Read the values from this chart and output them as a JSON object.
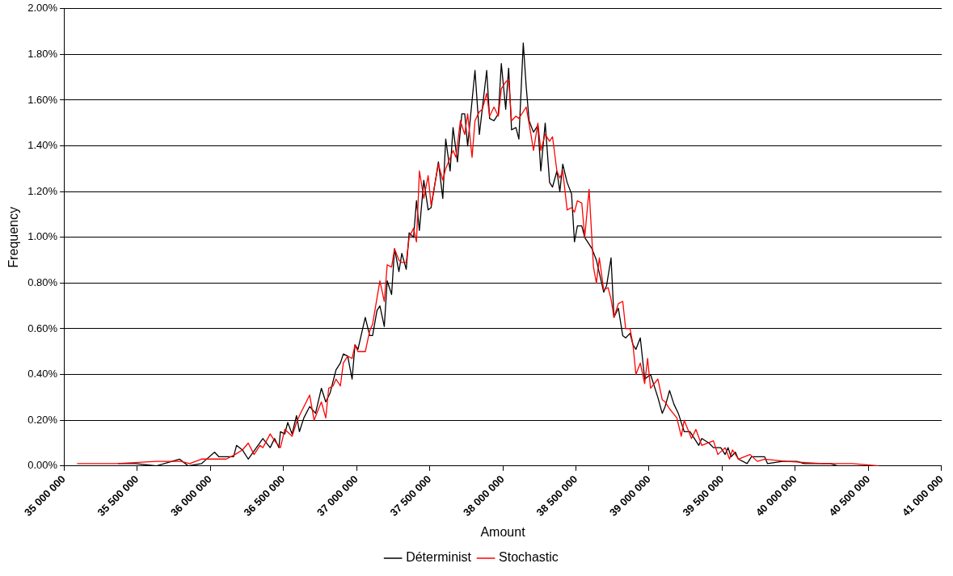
{
  "chart_data": {
    "type": "line",
    "xlabel": "Amount",
    "ylabel": "Frequency",
    "marker": "none",
    "line_style": "solid",
    "grid": "y",
    "legend": "bottom",
    "xlim": [
      35000000,
      41000000
    ],
    "xticks": [
      {
        "value": 35000000,
        "label": "35 000 000"
      },
      {
        "value": 35500000,
        "label": "35 500 000"
      },
      {
        "value": 36000000,
        "label": "36 000 000"
      },
      {
        "value": 36500000,
        "label": "36 500 000"
      },
      {
        "value": 37000000,
        "label": "37 000 000"
      },
      {
        "value": 37500000,
        "label": "37 500 000"
      },
      {
        "value": 38000000,
        "label": "38 000 000"
      },
      {
        "value": 38500000,
        "label": "38 500 000"
      },
      {
        "value": 39000000,
        "label": "39 000 000"
      },
      {
        "value": 39500000,
        "label": "39 500 000"
      },
      {
        "value": 40000000,
        "label": "40 000 000"
      },
      {
        "value": 40500000,
        "label": "40 500 000"
      },
      {
        "value": 41000000,
        "label": "41 000 000"
      }
    ],
    "ylim": [
      0,
      2
    ],
    "yticks": [
      {
        "value": 0,
        "label": "0.00%"
      },
      {
        "value": 0.2,
        "label": "0.20%"
      },
      {
        "value": 0.4,
        "label": "0.40%"
      },
      {
        "value": 0.6,
        "label": "0.60%"
      },
      {
        "value": 0.8,
        "label": "0.80%"
      },
      {
        "value": 1,
        "label": "1.00%"
      },
      {
        "value": 1.2,
        "label": "1.20%"
      },
      {
        "value": 1.4,
        "label": "1.40%"
      },
      {
        "value": 1.6,
        "label": "1.60%"
      },
      {
        "value": 1.8,
        "label": "1.80%"
      },
      {
        "value": 2,
        "label": "2.00%"
      }
    ],
    "series": [
      {
        "name": "Déterminist",
        "color": "#000000",
        "x": [
          35370000,
          35490000,
          35630000,
          35790000,
          35850000,
          35940000,
          36030000,
          36060000,
          36160000,
          36180000,
          36220000,
          36260000,
          36360000,
          36410000,
          36440000,
          36470000,
          36480000,
          36510000,
          36530000,
          36560000,
          36590000,
          36610000,
          36640000,
          36680000,
          36720000,
          36760000,
          36790000,
          36820000,
          36860000,
          36890000,
          36910000,
          36940000,
          36970000,
          36990000,
          37010000,
          37060000,
          37090000,
          37110000,
          37140000,
          37160000,
          37190000,
          37210000,
          37240000,
          37260000,
          37290000,
          37310000,
          37340000,
          37360000,
          37390000,
          37410000,
          37430000,
          37460000,
          37490000,
          37510000,
          37560000,
          37590000,
          37610000,
          37640000,
          37660000,
          37690000,
          37720000,
          37740000,
          37760000,
          37810000,
          37840000,
          37890000,
          37910000,
          37940000,
          37970000,
          37990000,
          38020000,
          38040000,
          38060000,
          38090000,
          38110000,
          38140000,
          38160000,
          38180000,
          38210000,
          38240000,
          38260000,
          38290000,
          38320000,
          38340000,
          38370000,
          38390000,
          38410000,
          38440000,
          38470000,
          38490000,
          38510000,
          38540000,
          38560000,
          38610000,
          38640000,
          38690000,
          38710000,
          38740000,
          38760000,
          38790000,
          38820000,
          38840000,
          38870000,
          38890000,
          38910000,
          38940000,
          38970000,
          38990000,
          39010000,
          39060000,
          39090000,
          39110000,
          39140000,
          39170000,
          39200000,
          39240000,
          39280000,
          39340000,
          39360000,
          39410000,
          39440000,
          39490000,
          39520000,
          39540000,
          39560000,
          39590000,
          39610000,
          39670000,
          39700000,
          39740000,
          39790000,
          39810000,
          39910000,
          40010000,
          40060000,
          40240000,
          40290000
        ],
        "values": [
          0.01,
          0.01,
          0,
          0.03,
          0,
          0.01,
          0.06,
          0.04,
          0.04,
          0.09,
          0.07,
          0.03,
          0.12,
          0.08,
          0.12,
          0.08,
          0.15,
          0.14,
          0.19,
          0.14,
          0.22,
          0.15,
          0.21,
          0.26,
          0.23,
          0.34,
          0.28,
          0.32,
          0.42,
          0.45,
          0.49,
          0.48,
          0.38,
          0.53,
          0.51,
          0.65,
          0.57,
          0.57,
          0.68,
          0.7,
          0.61,
          0.81,
          0.75,
          0.95,
          0.85,
          0.93,
          0.86,
          1.02,
          1,
          1.16,
          1.03,
          1.25,
          1.12,
          1.13,
          1.33,
          1.17,
          1.43,
          1.29,
          1.48,
          1.33,
          1.54,
          1.54,
          1.4,
          1.73,
          1.45,
          1.73,
          1.52,
          1.51,
          1.54,
          1.76,
          1.56,
          1.74,
          1.47,
          1.48,
          1.43,
          1.85,
          1.66,
          1.51,
          1.46,
          1.49,
          1.29,
          1.5,
          1.24,
          1.22,
          1.29,
          1.2,
          1.32,
          1.24,
          1.19,
          0.98,
          1.05,
          1.05,
          1,
          0.95,
          0.9,
          0.76,
          0.79,
          0.91,
          0.65,
          0.69,
          0.57,
          0.56,
          0.58,
          0.53,
          0.51,
          0.56,
          0.38,
          0.39,
          0.4,
          0.3,
          0.23,
          0.26,
          0.33,
          0.27,
          0.23,
          0.15,
          0.15,
          0.09,
          0.12,
          0.1,
          0.08,
          0.08,
          0.05,
          0.08,
          0.04,
          0.06,
          0.03,
          0.01,
          0.04,
          0.04,
          0.04,
          0.01,
          0.02,
          0.02,
          0.01,
          0.01,
          0
        ]
      },
      {
        "name": "Stochastic",
        "color": "#ff0000",
        "x": [
          35090000,
          35360000,
          35630000,
          35730000,
          35800000,
          35860000,
          35940000,
          36050000,
          36110000,
          36170000,
          36220000,
          36260000,
          36300000,
          36340000,
          36360000,
          36410000,
          36440000,
          36480000,
          36510000,
          36560000,
          36590000,
          36610000,
          36680000,
          36710000,
          36760000,
          36790000,
          36810000,
          36840000,
          36860000,
          36890000,
          36910000,
          36940000,
          36970000,
          36990000,
          37010000,
          37060000,
          37090000,
          37110000,
          37160000,
          37190000,
          37210000,
          37240000,
          37260000,
          37290000,
          37310000,
          37340000,
          37360000,
          37390000,
          37410000,
          37430000,
          37460000,
          37490000,
          37510000,
          37560000,
          37590000,
          37610000,
          37660000,
          37680000,
          37710000,
          37740000,
          37760000,
          37790000,
          37810000,
          37840000,
          37860000,
          37890000,
          37910000,
          37940000,
          37970000,
          37990000,
          38020000,
          38040000,
          38060000,
          38090000,
          38110000,
          38160000,
          38190000,
          38210000,
          38240000,
          38260000,
          38290000,
          38320000,
          38340000,
          38370000,
          38390000,
          38410000,
          38440000,
          38470000,
          38490000,
          38510000,
          38540000,
          38560000,
          38590000,
          38620000,
          38640000,
          38660000,
          38690000,
          38720000,
          38740000,
          38760000,
          38790000,
          38820000,
          38840000,
          38870000,
          38890000,
          38910000,
          38940000,
          38970000,
          38990000,
          39010000,
          39060000,
          39090000,
          39110000,
          39140000,
          39190000,
          39220000,
          39240000,
          39290000,
          39320000,
          39360000,
          39440000,
          39470000,
          39520000,
          39550000,
          39570000,
          39610000,
          39690000,
          39740000,
          39790000,
          39940000,
          40190000,
          40390000,
          40570000
        ],
        "values": [
          0.01,
          0.01,
          0.02,
          0.02,
          0.02,
          0.01,
          0.03,
          0.03,
          0.03,
          0.05,
          0.07,
          0.1,
          0.05,
          0.09,
          0.08,
          0.14,
          0.11,
          0.08,
          0.16,
          0.13,
          0.19,
          0.22,
          0.31,
          0.2,
          0.28,
          0.21,
          0.34,
          0.35,
          0.38,
          0.35,
          0.45,
          0.48,
          0.47,
          0.53,
          0.5,
          0.5,
          0.59,
          0.62,
          0.81,
          0.72,
          0.88,
          0.87,
          0.95,
          0.9,
          0.89,
          0.89,
          1,
          1.04,
          0.98,
          1.29,
          1.17,
          1.27,
          1.14,
          1.32,
          1.25,
          1.3,
          1.38,
          1.35,
          1.51,
          1.45,
          1.54,
          1.35,
          1.51,
          1.55,
          1.56,
          1.63,
          1.53,
          1.57,
          1.53,
          1.65,
          1.68,
          1.69,
          1.51,
          1.53,
          1.52,
          1.57,
          1.46,
          1.38,
          1.5,
          1.38,
          1.45,
          1.42,
          1.44,
          1.29,
          1.26,
          1.29,
          1.12,
          1.13,
          1.11,
          1.16,
          1.15,
          1,
          1.21,
          0.87,
          0.8,
          0.91,
          0.77,
          0.78,
          0.73,
          0.65,
          0.71,
          0.72,
          0.6,
          0.6,
          0.53,
          0.4,
          0.45,
          0.36,
          0.47,
          0.34,
          0.38,
          0.29,
          0.28,
          0.25,
          0.21,
          0.13,
          0.2,
          0.12,
          0.16,
          0.09,
          0.11,
          0.05,
          0.08,
          0.03,
          0.07,
          0.03,
          0.05,
          0.02,
          0.03,
          0.02,
          0.01,
          0.01,
          0
        ]
      }
    ]
  }
}
